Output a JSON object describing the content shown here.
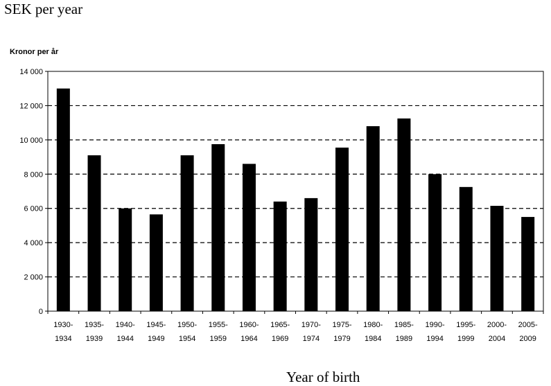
{
  "page": {
    "top_label": "SEK per year",
    "bottom_label": "Year of birth"
  },
  "chart_data": {
    "type": "bar",
    "units_label": "Kronor per år",
    "categories": [
      [
        "1930-",
        "1934"
      ],
      [
        "1935-",
        "1939"
      ],
      [
        "1940-",
        "1944"
      ],
      [
        "1945-",
        "1949"
      ],
      [
        "1950-",
        "1954"
      ],
      [
        "1955-",
        "1959"
      ],
      [
        "1960-",
        "1964"
      ],
      [
        "1965-",
        "1969"
      ],
      [
        "1970-",
        "1974"
      ],
      [
        "1975-",
        "1979"
      ],
      [
        "1980-",
        "1984"
      ],
      [
        "1985-",
        "1989"
      ],
      [
        "1990-",
        "1994"
      ],
      [
        "1995-",
        "1999"
      ],
      [
        "2000-",
        "2004"
      ],
      [
        "2005-",
        "2009"
      ]
    ],
    "values": [
      13000,
      9100,
      6000,
      5650,
      9100,
      9750,
      8600,
      6400,
      6600,
      9550,
      10800,
      11250,
      8000,
      7250,
      6150,
      5500
    ],
    "ylim": [
      0,
      14000
    ],
    "yticks": [
      0,
      2000,
      4000,
      6000,
      8000,
      10000,
      12000,
      14000
    ],
    "ytick_labels": [
      "0",
      "2 000",
      "4 000",
      "6 000",
      "8 000",
      "10 000",
      "12 000",
      "14 000"
    ],
    "grid": "dashed horizontal",
    "bar_color": "#000000"
  }
}
